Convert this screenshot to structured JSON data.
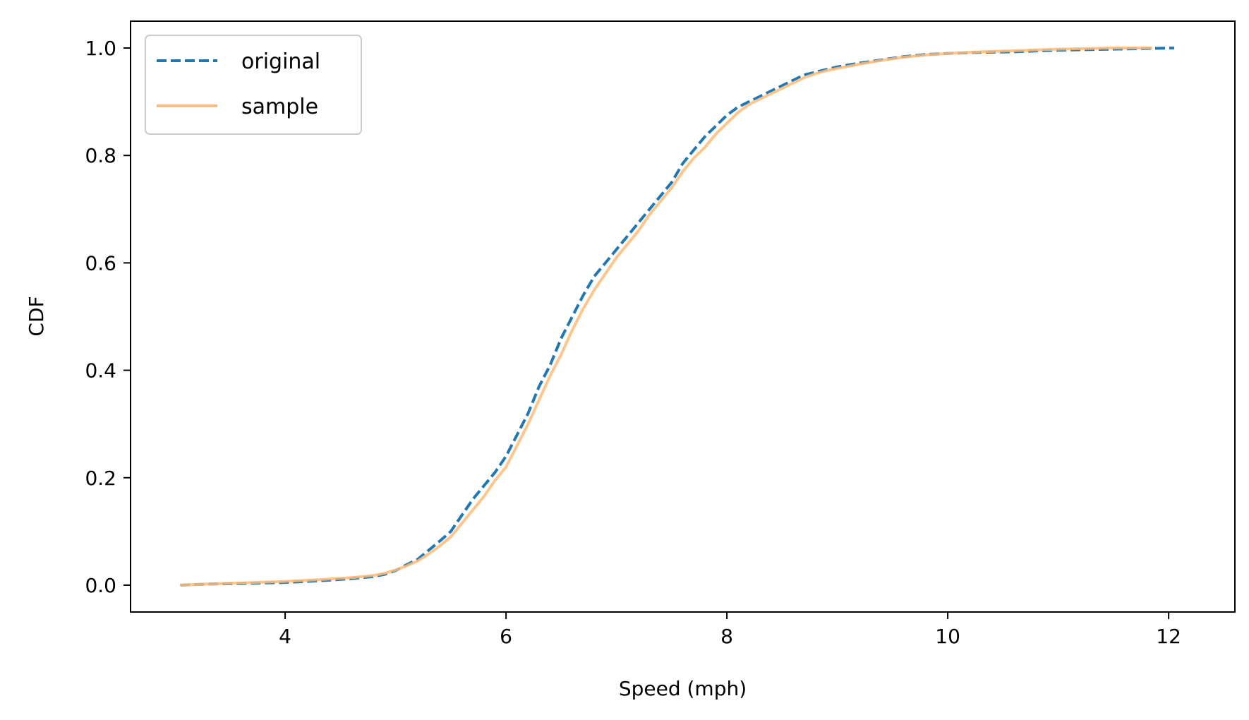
{
  "chart_data": {
    "type": "line",
    "title": "",
    "xlabel": "Speed (mph)",
    "ylabel": "CDF",
    "xlim": [
      2.6,
      12.6
    ],
    "ylim": [
      -0.05,
      1.05
    ],
    "xticks": [
      4,
      6,
      8,
      10,
      12
    ],
    "xtick_labels": [
      "4",
      "6",
      "8",
      "10",
      "12"
    ],
    "yticks": [
      0.0,
      0.2,
      0.4,
      0.6,
      0.8,
      1.0
    ],
    "ytick_labels": [
      "0.0",
      "0.2",
      "0.4",
      "0.6",
      "0.8",
      "1.0"
    ],
    "grid": false,
    "legend_position": "top-left",
    "series": [
      {
        "name": "original",
        "color": "#1f77b4",
        "style": "dashed",
        "x": [
          3.05,
          3.3,
          3.6,
          4.0,
          4.3,
          4.6,
          4.8,
          4.9,
          5.0,
          5.1,
          5.2,
          5.3,
          5.4,
          5.5,
          5.6,
          5.7,
          5.8,
          5.9,
          6.0,
          6.1,
          6.2,
          6.3,
          6.4,
          6.5,
          6.6,
          6.7,
          6.8,
          6.9,
          7.0,
          7.1,
          7.2,
          7.3,
          7.4,
          7.5,
          7.6,
          7.7,
          7.8,
          7.9,
          8.0,
          8.1,
          8.2,
          8.3,
          8.4,
          8.5,
          8.6,
          8.7,
          8.8,
          8.9,
          9.0,
          9.2,
          9.4,
          9.6,
          9.8,
          10.0,
          10.3,
          10.6,
          11.0,
          11.5,
          12.05
        ],
        "y": [
          0.0,
          0.002,
          0.003,
          0.005,
          0.008,
          0.012,
          0.016,
          0.02,
          0.027,
          0.038,
          0.048,
          0.065,
          0.082,
          0.1,
          0.13,
          0.16,
          0.185,
          0.21,
          0.24,
          0.28,
          0.32,
          0.37,
          0.41,
          0.46,
          0.5,
          0.54,
          0.575,
          0.6,
          0.625,
          0.65,
          0.675,
          0.7,
          0.725,
          0.75,
          0.785,
          0.81,
          0.835,
          0.855,
          0.875,
          0.89,
          0.9,
          0.91,
          0.92,
          0.93,
          0.94,
          0.95,
          0.955,
          0.96,
          0.965,
          0.972,
          0.978,
          0.984,
          0.988,
          0.99,
          0.992,
          0.993,
          0.996,
          0.998,
          1.0
        ]
      },
      {
        "name": "sample",
        "color": "#ffbb78",
        "style": "solid",
        "x": [
          3.05,
          3.3,
          3.6,
          4.0,
          4.3,
          4.6,
          4.8,
          4.9,
          5.0,
          5.1,
          5.2,
          5.3,
          5.4,
          5.5,
          5.6,
          5.7,
          5.8,
          5.9,
          6.0,
          6.1,
          6.2,
          6.3,
          6.4,
          6.5,
          6.6,
          6.7,
          6.8,
          6.9,
          7.0,
          7.1,
          7.2,
          7.3,
          7.4,
          7.5,
          7.6,
          7.7,
          7.8,
          7.9,
          8.0,
          8.1,
          8.2,
          8.3,
          8.4,
          8.5,
          8.6,
          8.7,
          8.8,
          8.9,
          9.0,
          9.2,
          9.4,
          9.6,
          9.8,
          10.0,
          10.3,
          10.6,
          11.0,
          11.5,
          11.85
        ],
        "y": [
          0.0,
          0.002,
          0.004,
          0.007,
          0.01,
          0.014,
          0.018,
          0.022,
          0.028,
          0.036,
          0.045,
          0.058,
          0.073,
          0.09,
          0.115,
          0.14,
          0.165,
          0.195,
          0.22,
          0.26,
          0.3,
          0.345,
          0.39,
          0.43,
          0.475,
          0.515,
          0.55,
          0.58,
          0.61,
          0.635,
          0.66,
          0.69,
          0.715,
          0.74,
          0.77,
          0.795,
          0.815,
          0.84,
          0.86,
          0.88,
          0.895,
          0.905,
          0.915,
          0.925,
          0.935,
          0.945,
          0.952,
          0.958,
          0.962,
          0.97,
          0.977,
          0.983,
          0.987,
          0.99,
          0.993,
          0.995,
          0.998,
          1.0,
          1.0
        ]
      }
    ]
  }
}
